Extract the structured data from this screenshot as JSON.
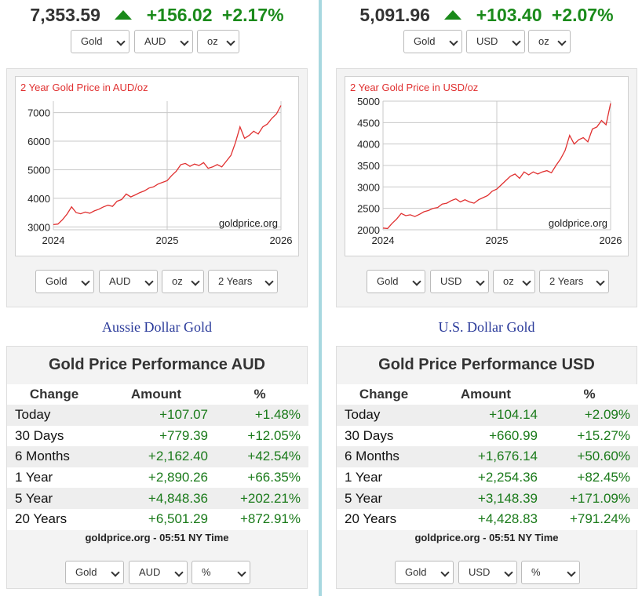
{
  "colors": {
    "up": "#1a8a1a",
    "line": "#e03030",
    "grid": "#c8c8c8",
    "caption": "#2a3a9a"
  },
  "left": {
    "ticker": {
      "price": "7,353.59",
      "change": "+156.02",
      "pct": "+2.17%"
    },
    "top_selects": {
      "metal": "Gold",
      "currency": "AUD",
      "unit": "oz"
    },
    "chart_selects": {
      "metal": "Gold",
      "currency": "AUD",
      "unit": "oz",
      "range": "2 Years"
    },
    "caption": "Aussie Dollar Gold",
    "perf": {
      "title": "Gold Price Performance AUD",
      "headers": {
        "change": "Change",
        "amount": "Amount",
        "pct": "%"
      },
      "rows": [
        {
          "label": "Today",
          "amount": "+107.07",
          "pct": "+1.48%"
        },
        {
          "label": "30 Days",
          "amount": "+779.39",
          "pct": "+12.05%"
        },
        {
          "label": "6 Months",
          "amount": "+2,162.40",
          "pct": "+42.54%"
        },
        {
          "label": "1 Year",
          "amount": "+2,890.26",
          "pct": "+66.35%"
        },
        {
          "label": "5 Year",
          "amount": "+4,848.36",
          "pct": "+202.21%"
        },
        {
          "label": "20 Years",
          "amount": "+6,501.29",
          "pct": "+872.91%"
        }
      ],
      "footer": "goldprice.org - 05:51 NY Time"
    },
    "bottom_selects": {
      "metal": "Gold",
      "currency": "AUD",
      "unit": "%"
    }
  },
  "right": {
    "ticker": {
      "price": "5,091.96",
      "change": "+103.40",
      "pct": "+2.07%"
    },
    "top_selects": {
      "metal": "Gold",
      "currency": "USD",
      "unit": "oz"
    },
    "chart_selects": {
      "metal": "Gold",
      "currency": "USD",
      "unit": "oz",
      "range": "2 Years"
    },
    "caption": "U.S. Dollar Gold",
    "perf": {
      "title": "Gold Price Performance USD",
      "headers": {
        "change": "Change",
        "amount": "Amount",
        "pct": "%"
      },
      "rows": [
        {
          "label": "Today",
          "amount": "+104.14",
          "pct": "+2.09%"
        },
        {
          "label": "30 Days",
          "amount": "+660.99",
          "pct": "+15.27%"
        },
        {
          "label": "6 Months",
          "amount": "+1,676.14",
          "pct": "+50.60%"
        },
        {
          "label": "1 Year",
          "amount": "+2,254.36",
          "pct": "+82.45%"
        },
        {
          "label": "5 Year",
          "amount": "+3,148.39",
          "pct": "+171.09%"
        },
        {
          "label": "20 Years",
          "amount": "+4,428.83",
          "pct": "+791.24%"
        }
      ],
      "footer": "goldprice.org - 05:51 NY Time"
    },
    "bottom_selects": {
      "metal": "Gold",
      "currency": "USD",
      "unit": "%"
    }
  },
  "chart_data": [
    {
      "type": "line",
      "title": "2 Year Gold Price in AUD/oz",
      "watermark": "goldprice.org",
      "xlim": [
        2024,
        2026
      ],
      "ylim": [
        2900,
        7400
      ],
      "x_ticks": [
        "2024",
        "2025",
        "2026"
      ],
      "y_ticks": [
        "3000",
        "4000",
        "5000",
        "6000",
        "7000"
      ],
      "x": [
        2024.0,
        2024.04,
        2024.08,
        2024.12,
        2024.16,
        2024.2,
        2024.24,
        2024.28,
        2024.32,
        2024.36,
        2024.4,
        2024.44,
        2024.48,
        2024.52,
        2024.56,
        2024.6,
        2024.64,
        2024.68,
        2024.72,
        2024.76,
        2024.8,
        2024.84,
        2024.88,
        2024.92,
        2024.96,
        2025.0,
        2025.04,
        2025.08,
        2025.12,
        2025.16,
        2025.2,
        2025.24,
        2025.28,
        2025.32,
        2025.36,
        2025.4,
        2025.44,
        2025.48,
        2025.52,
        2025.56,
        2025.6,
        2025.64,
        2025.68,
        2025.72,
        2025.76,
        2025.8,
        2025.84,
        2025.88,
        2025.92,
        2025.96,
        2026.0
      ],
      "values": [
        3080,
        3100,
        3250,
        3450,
        3700,
        3500,
        3460,
        3520,
        3480,
        3560,
        3620,
        3700,
        3760,
        3720,
        3900,
        3960,
        4150,
        4050,
        4120,
        4200,
        4260,
        4360,
        4400,
        4500,
        4560,
        4620,
        4800,
        4950,
        5180,
        5220,
        5120,
        5200,
        5150,
        5250,
        5050,
        5100,
        5180,
        5100,
        5300,
        5500,
        5950,
        6500,
        6100,
        6200,
        6350,
        6250,
        6500,
        6600,
        6800,
        6950,
        7250
      ]
    },
    {
      "type": "line",
      "title": "2 Year Gold Price in USD/oz",
      "watermark": "goldprice.org",
      "xlim": [
        2024,
        2026
      ],
      "ylim": [
        2000,
        5000
      ],
      "x_ticks": [
        "2024",
        "2025",
        "2026"
      ],
      "y_ticks": [
        "2000",
        "2500",
        "3000",
        "3500",
        "4000",
        "4500",
        "5000"
      ],
      "x": [
        2024.0,
        2024.04,
        2024.08,
        2024.12,
        2024.16,
        2024.2,
        2024.24,
        2024.28,
        2024.32,
        2024.36,
        2024.4,
        2024.44,
        2024.48,
        2024.52,
        2024.56,
        2024.6,
        2024.64,
        2024.68,
        2024.72,
        2024.76,
        2024.8,
        2024.84,
        2024.88,
        2024.92,
        2024.96,
        2025.0,
        2025.04,
        2025.08,
        2025.12,
        2025.16,
        2025.2,
        2025.24,
        2025.28,
        2025.32,
        2025.36,
        2025.4,
        2025.44,
        2025.48,
        2025.52,
        2025.56,
        2025.6,
        2025.64,
        2025.68,
        2025.72,
        2025.76,
        2025.8,
        2025.84,
        2025.88,
        2025.92,
        2025.96,
        2026.0
      ],
      "values": [
        2040,
        2030,
        2150,
        2250,
        2380,
        2330,
        2350,
        2310,
        2360,
        2420,
        2450,
        2500,
        2520,
        2600,
        2620,
        2680,
        2720,
        2650,
        2700,
        2650,
        2620,
        2700,
        2750,
        2800,
        2900,
        2950,
        3050,
        3150,
        3250,
        3300,
        3200,
        3350,
        3280,
        3350,
        3300,
        3350,
        3380,
        3330,
        3500,
        3650,
        3850,
        4200,
        4000,
        4100,
        4150,
        4050,
        4350,
        4400,
        4550,
        4450,
        4950
      ]
    }
  ]
}
